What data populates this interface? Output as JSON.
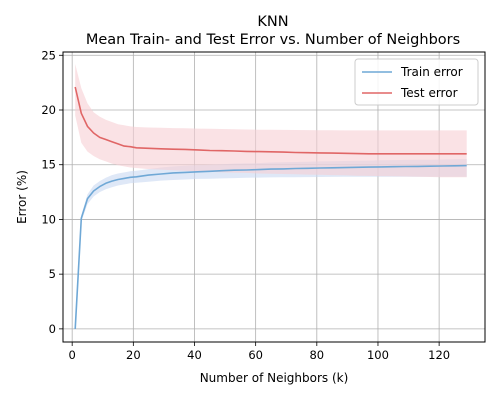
{
  "chart_data": {
    "type": "line",
    "title": "KNN",
    "subtitle": "Mean Train- and Test Error vs. Number of Neighbors",
    "xlabel": "Number of Neighbors (k)",
    "ylabel": "Error (%)",
    "xlim": [
      -3,
      135
    ],
    "ylim": [
      -1.2,
      25.3
    ],
    "xticks": [
      0,
      20,
      40,
      60,
      80,
      100,
      120
    ],
    "yticks": [
      0,
      5,
      10,
      15,
      20,
      25
    ],
    "grid": true,
    "legend_position": "top-right",
    "x": [
      1,
      3,
      5,
      7,
      9,
      11,
      13,
      15,
      17,
      19,
      21,
      25,
      29,
      33,
      37,
      41,
      45,
      49,
      53,
      57,
      61,
      65,
      69,
      73,
      77,
      81,
      85,
      89,
      93,
      97,
      101,
      105,
      109,
      113,
      117,
      121,
      125,
      129
    ],
    "series": [
      {
        "name": "Train error",
        "color": "#6fa8d6",
        "band_color": "#c9d9f2",
        "values": [
          0.0,
          10.1,
          11.9,
          12.6,
          13.0,
          13.3,
          13.5,
          13.65,
          13.75,
          13.85,
          13.9,
          14.05,
          14.15,
          14.25,
          14.3,
          14.35,
          14.4,
          14.45,
          14.5,
          14.52,
          14.55,
          14.6,
          14.62,
          14.65,
          14.67,
          14.7,
          14.72,
          14.74,
          14.76,
          14.78,
          14.8,
          14.82,
          14.84,
          14.85,
          14.86,
          14.88,
          14.9,
          14.92
        ],
        "lower": [
          0.0,
          9.8,
          11.4,
          12.1,
          12.5,
          12.75,
          12.95,
          13.1,
          13.2,
          13.3,
          13.35,
          13.45,
          13.55,
          13.6,
          13.65,
          13.7,
          13.72,
          13.75,
          13.78,
          13.8,
          13.82,
          13.84,
          13.85,
          13.86,
          13.87,
          13.88,
          13.89,
          13.9,
          13.9,
          13.9,
          13.9,
          13.9,
          13.9,
          13.9,
          13.9,
          13.9,
          13.9,
          13.9
        ],
        "upper": [
          0.0,
          10.4,
          12.3,
          13.1,
          13.5,
          13.8,
          14.05,
          14.2,
          14.3,
          14.4,
          14.45,
          14.6,
          14.75,
          14.85,
          14.9,
          14.95,
          15.0,
          15.05,
          15.1,
          15.12,
          15.15,
          15.2,
          15.22,
          15.25,
          15.27,
          15.3,
          15.32,
          15.34,
          15.36,
          15.38,
          15.4,
          15.42,
          15.44,
          15.45,
          15.46,
          15.48,
          15.5,
          15.52
        ]
      },
      {
        "name": "Test error",
        "color": "#e06666",
        "band_color": "#f7cfd3",
        "values": [
          22.1,
          19.7,
          18.5,
          17.9,
          17.5,
          17.3,
          17.1,
          16.9,
          16.7,
          16.65,
          16.55,
          16.5,
          16.45,
          16.42,
          16.4,
          16.35,
          16.3,
          16.28,
          16.25,
          16.22,
          16.2,
          16.18,
          16.15,
          16.12,
          16.1,
          16.08,
          16.06,
          16.04,
          16.02,
          16.0,
          16.0,
          16.0,
          16.0,
          16.0,
          16.0,
          16.0,
          16.0,
          16.0
        ],
        "lower": [
          19.5,
          17.0,
          16.2,
          15.8,
          15.5,
          15.3,
          15.1,
          14.95,
          14.85,
          14.75,
          14.7,
          14.6,
          14.55,
          14.5,
          14.45,
          14.4,
          14.35,
          14.3,
          14.28,
          14.25,
          14.2,
          14.18,
          14.15,
          14.12,
          14.1,
          14.08,
          14.05,
          14.03,
          14.0,
          13.98,
          13.96,
          13.94,
          13.92,
          13.9,
          13.88,
          13.86,
          13.85,
          13.85
        ],
        "upper": [
          24.2,
          22.0,
          20.6,
          19.8,
          19.4,
          19.1,
          18.9,
          18.7,
          18.6,
          18.5,
          18.45,
          18.4,
          18.38,
          18.35,
          18.33,
          18.3,
          18.28,
          18.26,
          18.24,
          18.22,
          18.2,
          18.2,
          18.18,
          18.17,
          18.16,
          18.15,
          18.15,
          18.14,
          18.14,
          18.14,
          18.14,
          18.14,
          18.14,
          18.14,
          18.14,
          18.14,
          18.14,
          18.14
        ]
      }
    ]
  }
}
